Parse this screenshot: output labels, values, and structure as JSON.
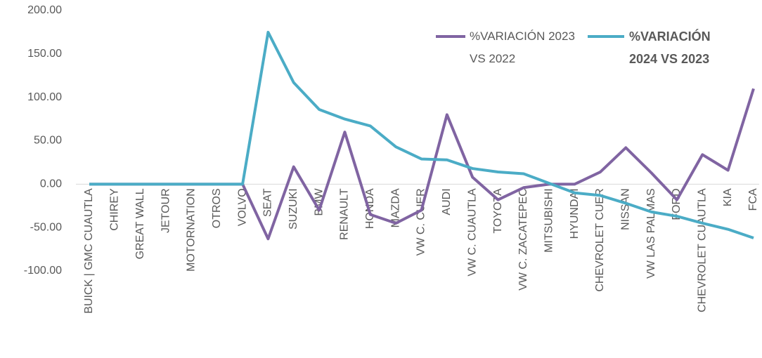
{
  "chart_data": {
    "type": "line",
    "categories": [
      "BUICK | GMC CUAUTLA",
      "CHIREY",
      "GREAT WALL",
      "JETOUR",
      "MOTORNATION",
      "OTROS",
      "VOLVO",
      "SEAT",
      "SUZUKI",
      "BMW",
      "RENAULT",
      "HONDA",
      "MAZDA",
      "VW C. CUER",
      "AUDI",
      "VW C. CUAUTLA",
      "TOYOTA",
      "VW C. ZACATEPEC",
      "MITSUBISHI",
      "HYUNDAI",
      "CHEVROLET CUER",
      "NISSAN",
      "VW LAS PALMAS",
      "FORD",
      "CHEVROLET CUAUTLA",
      "KIA",
      "FCA"
    ],
    "series": [
      {
        "name": "%VARIACIÓN 2023 VS 2022",
        "color": "#8064a2",
        "values": [
          0,
          0,
          0,
          0,
          0,
          0,
          0,
          -63,
          20,
          -30,
          60,
          -35,
          -45,
          -30,
          80,
          8,
          -18,
          -4,
          0,
          0,
          14,
          42,
          13,
          -18,
          34,
          16,
          110
        ]
      },
      {
        "name": "%VARIACIÓN 2024 VS 2023",
        "color": "#4bacc6",
        "values": [
          0,
          0,
          0,
          0,
          0,
          0,
          0,
          175,
          117,
          86,
          75,
          67,
          43,
          29,
          28,
          18,
          14,
          12,
          1,
          -10,
          -13,
          -22,
          -32,
          -37,
          -45,
          -52,
          -62
        ]
      }
    ],
    "ylim": [
      -100,
      200
    ],
    "yticks": [
      {
        "value": -100,
        "label": "-100.00"
      },
      {
        "value": -50,
        "label": "-50.00"
      },
      {
        "value": 0,
        "label": "0.00"
      },
      {
        "value": 50,
        "label": "50.00"
      },
      {
        "value": 100,
        "label": "100.00"
      },
      {
        "value": 150,
        "label": "150.00"
      },
      {
        "value": 200,
        "label": "200.00"
      }
    ],
    "grid": false
  }
}
